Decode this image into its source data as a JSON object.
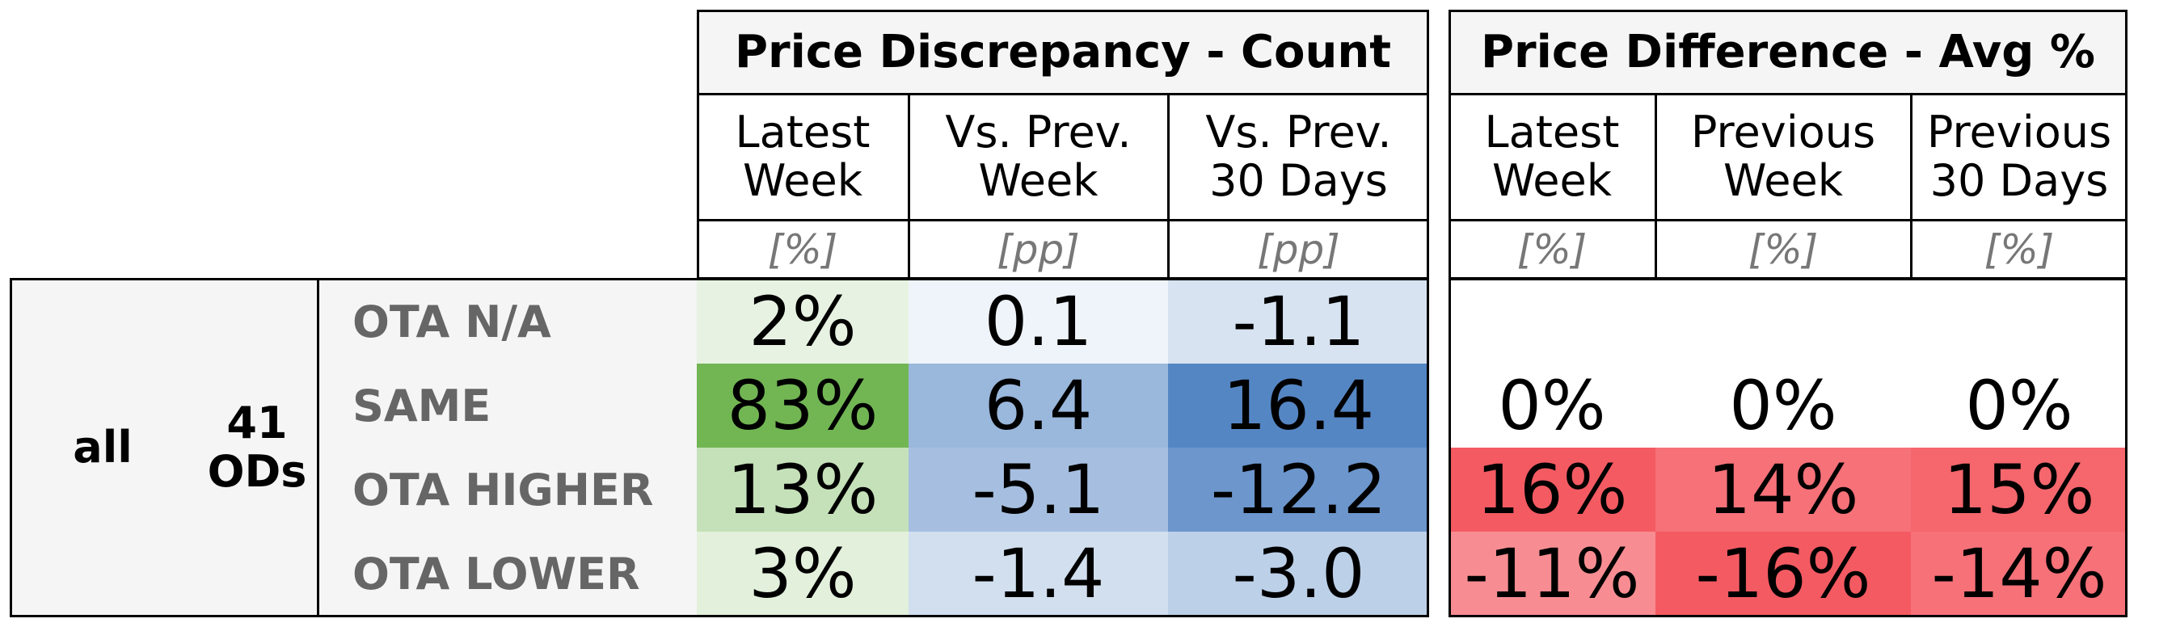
{
  "chart_data": {
    "type": "table",
    "panels": [
      {
        "title": "Price Discrepancy - Count",
        "columns": [
          {
            "header": "Latest\nWeek",
            "unit": "[%]"
          },
          {
            "header": "Vs. Prev.\nWeek",
            "unit": "[pp]"
          },
          {
            "header": "Vs. Prev.\n30 Days",
            "unit": "[pp]"
          }
        ]
      },
      {
        "title": "Price Difference - Avg %",
        "columns": [
          {
            "header": "Latest\nWeek",
            "unit": "[%]"
          },
          {
            "header": "Previous\nWeek",
            "unit": "[%]"
          },
          {
            "header": "Previous\n30 Days",
            "unit": "[%]"
          }
        ]
      }
    ],
    "group": {
      "label": "all",
      "count_label": "41\nODs"
    },
    "rows": [
      {
        "label": "OTA N/A",
        "count": [
          "2%",
          "0.1",
          "-1.1"
        ],
        "count_num": [
          2,
          0.1,
          -1.1
        ],
        "avg": [
          "",
          "",
          ""
        ],
        "avg_num": [
          null,
          null,
          null
        ]
      },
      {
        "label": "SAME",
        "count": [
          "83%",
          "6.4",
          "16.4"
        ],
        "count_num": [
          83,
          6.4,
          16.4
        ],
        "avg": [
          "0%",
          "0%",
          "0%"
        ],
        "avg_num": [
          0,
          0,
          0
        ]
      },
      {
        "label": "OTA HIGHER",
        "count": [
          "13%",
          "-5.1",
          "-12.2"
        ],
        "count_num": [
          13,
          -5.1,
          -12.2
        ],
        "avg": [
          "16%",
          "14%",
          "15%"
        ],
        "avg_num": [
          16,
          14,
          15
        ]
      },
      {
        "label": "OTA LOWER",
        "count": [
          "3%",
          "-1.4",
          "-3.0"
        ],
        "count_num": [
          3,
          -1.4,
          -3.0
        ],
        "avg": [
          "-11%",
          "-16%",
          "-14%"
        ],
        "avg_num": [
          -11,
          -16,
          -14
        ]
      }
    ],
    "colors": {
      "green": "#72b654",
      "blue": "#5586c4",
      "red": "#f45a62",
      "label_bg": "#f5f5f5"
    }
  }
}
